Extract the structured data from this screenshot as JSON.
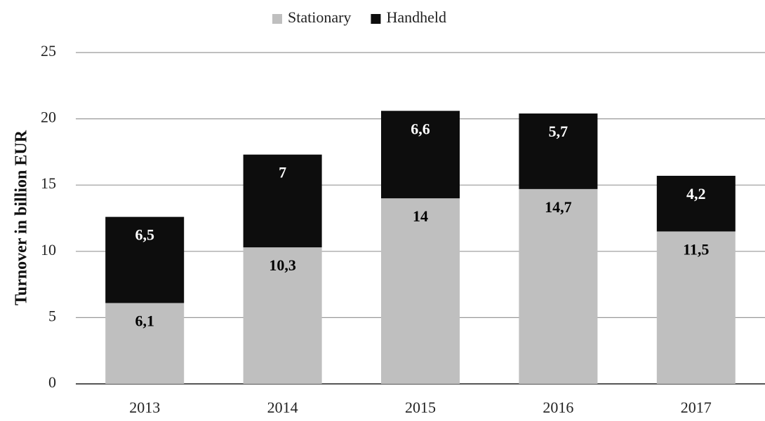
{
  "chart_data": {
    "type": "stacked_bar",
    "categories": [
      "2013",
      "2014",
      "2015",
      "2016",
      "2017"
    ],
    "series": [
      {
        "name": "Stationary",
        "color": "#bfbfbf",
        "label_color": "#000000",
        "values": [
          6.1,
          10.3,
          14,
          14.7,
          11.5
        ],
        "value_labels": [
          "6,1",
          "10,3",
          "14",
          "14,7",
          "11,5"
        ]
      },
      {
        "name": "Handheld",
        "color": "#0d0d0d",
        "label_color": "#ffffff",
        "values": [
          6.5,
          7,
          6.6,
          5.7,
          4.2
        ],
        "value_labels": [
          "6,5",
          "7",
          "6,6",
          "5,7",
          "4,2"
        ]
      }
    ],
    "y_axis_label": "Turnover in billion EUR",
    "ylim": [
      0,
      25
    ],
    "yticks": [
      0,
      5,
      10,
      15,
      20,
      25
    ],
    "grid": true,
    "legend": "top"
  }
}
